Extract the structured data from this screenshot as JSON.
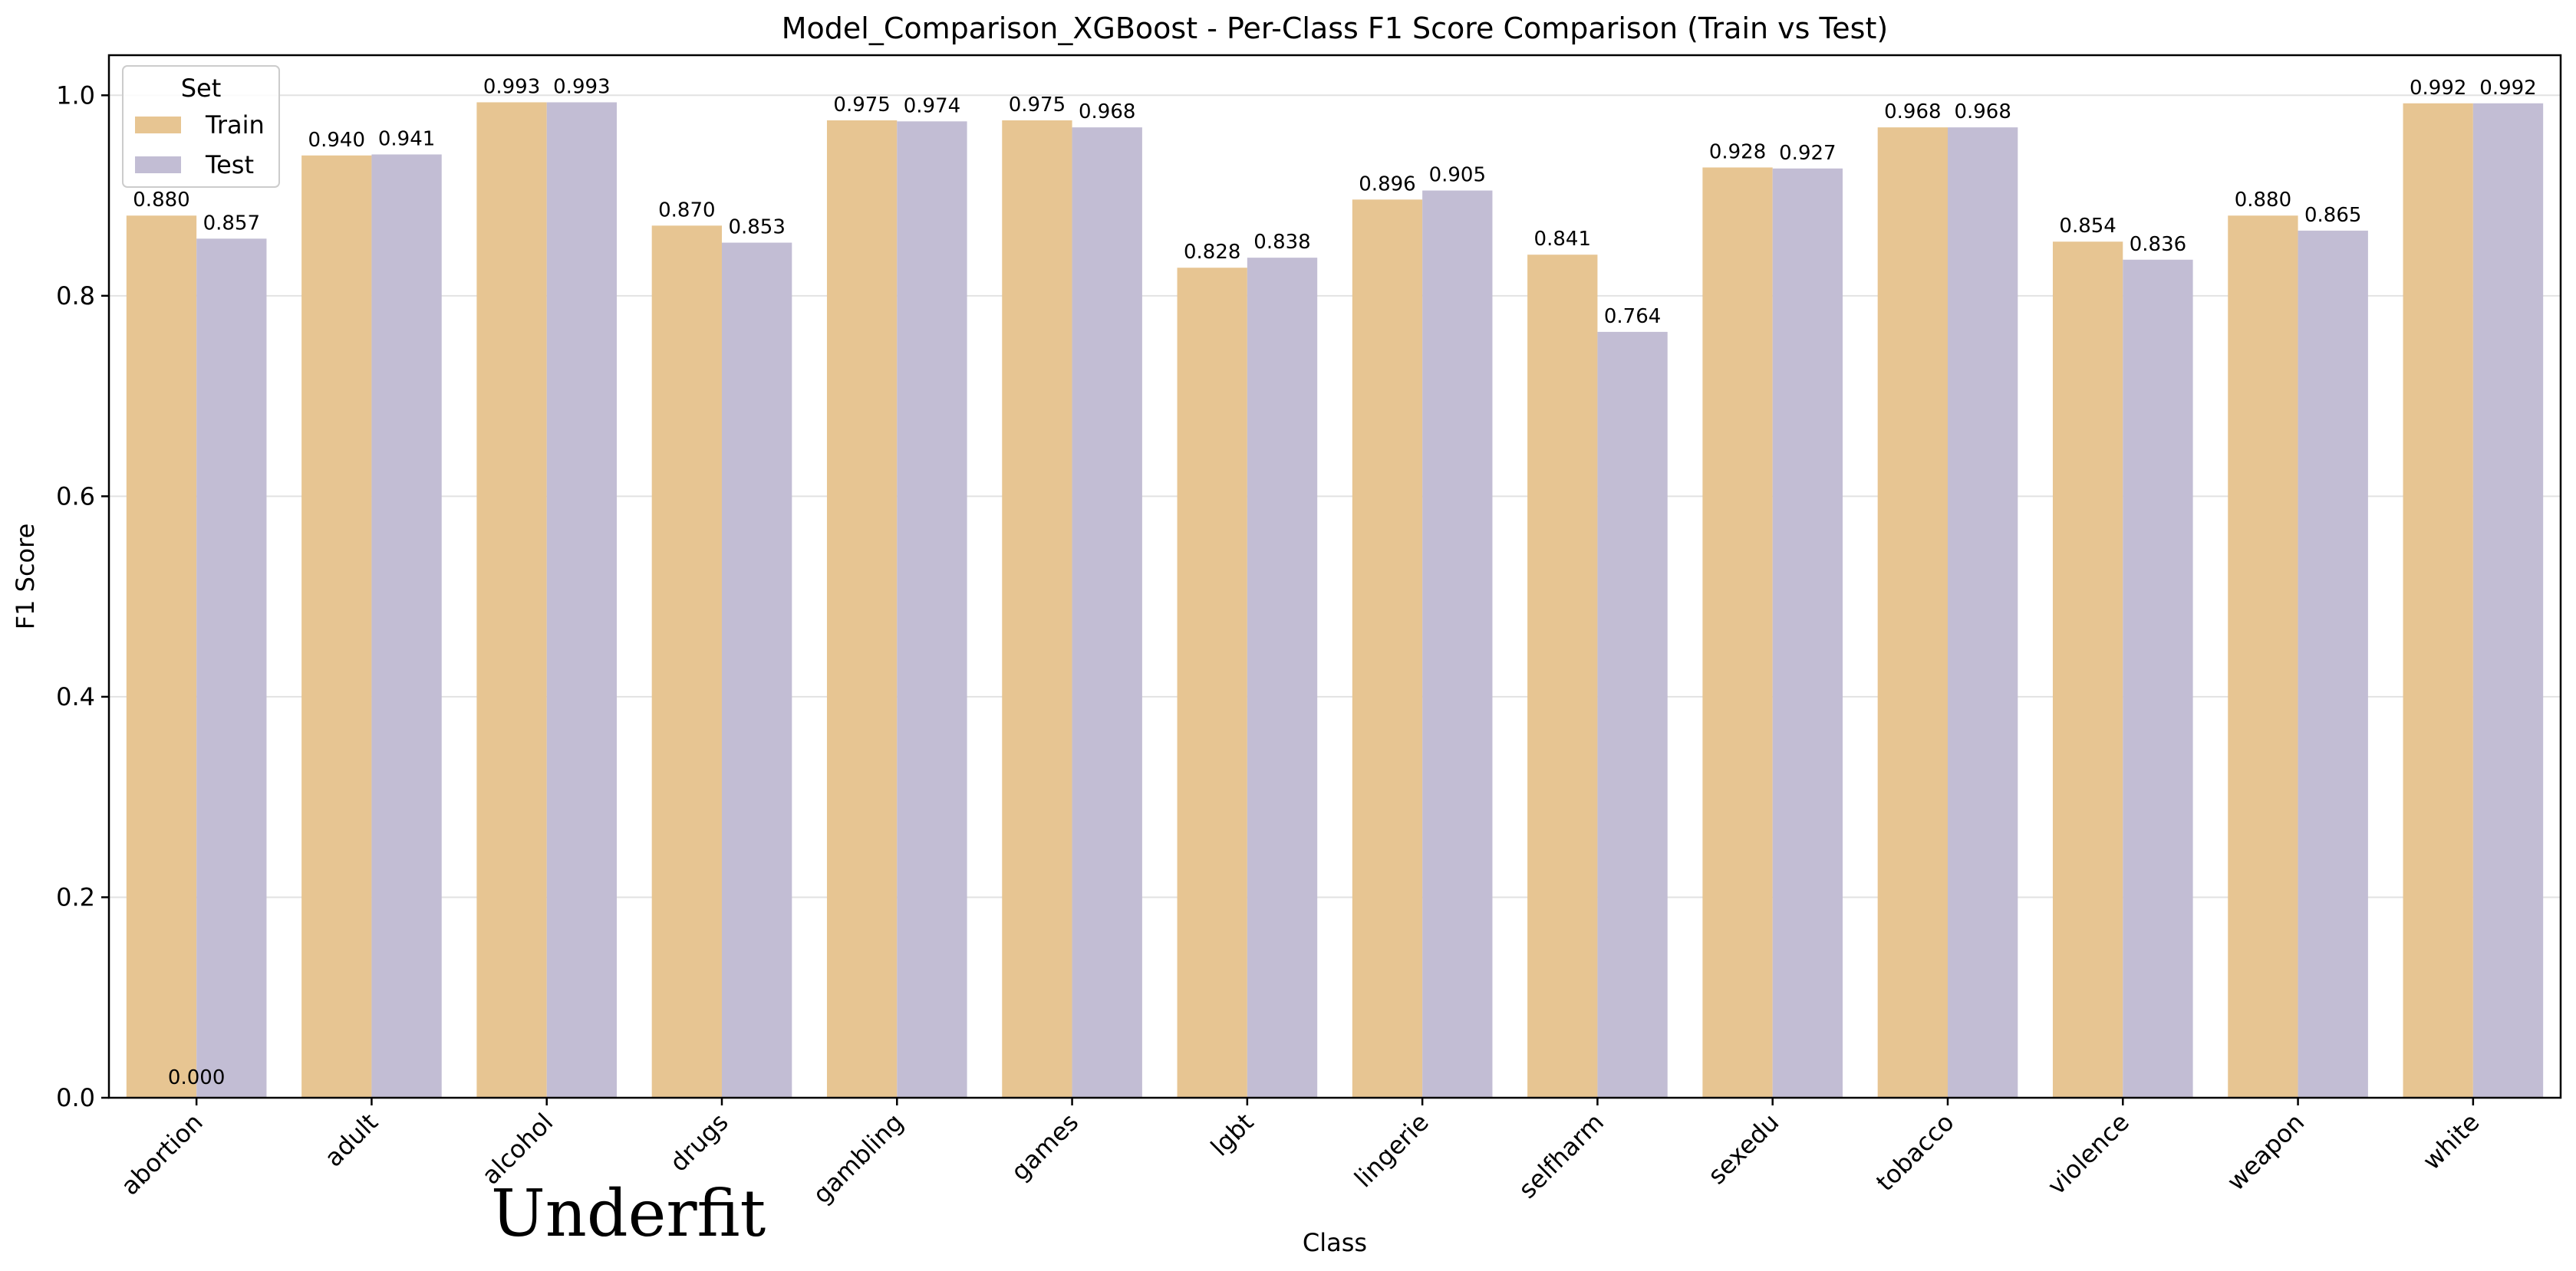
{
  "chart_data": {
    "type": "bar",
    "title": "Model_Comparison_XGBoost - Per-Class F1 Score Comparison (Train vs Test)",
    "xlabel": "Class",
    "ylabel": "F1 Score",
    "ylim": [
      0,
      1.04
    ],
    "yticks": [
      "0.0",
      "0.2",
      "0.4",
      "0.6",
      "0.8",
      "1.0"
    ],
    "grid": "y",
    "legend": {
      "title": "Set",
      "position": "top-left"
    },
    "categories": [
      "abortion",
      "adult",
      "alcohol",
      "drugs",
      "gambling",
      "games",
      "lgbt",
      "lingerie",
      "selfharm",
      "sexedu",
      "tobacco",
      "violence",
      "weapon",
      "white"
    ],
    "series": [
      {
        "name": "Train",
        "color": "#e7c592",
        "values": [
          0.88,
          0.94,
          0.993,
          0.87,
          0.975,
          0.975,
          0.828,
          0.896,
          0.841,
          0.928,
          0.968,
          0.854,
          0.88,
          0.992
        ],
        "labels": [
          "0.880",
          "0.940",
          "0.993",
          "0.870",
          "0.975",
          "0.975",
          "0.828",
          "0.896",
          "0.841",
          "0.928",
          "0.968",
          "0.854",
          "0.880",
          "0.992"
        ]
      },
      {
        "name": "Test",
        "color": "#c2bdd4",
        "values": [
          0.857,
          0.941,
          0.993,
          0.853,
          0.974,
          0.968,
          0.838,
          0.905,
          0.764,
          0.927,
          0.968,
          0.836,
          0.865,
          0.992
        ],
        "labels": [
          "0.857",
          "0.941",
          "0.993",
          "0.853",
          "0.974",
          "0.968",
          "0.838",
          "0.905",
          "0.764",
          "0.927",
          "0.968",
          "0.836",
          "0.865",
          "0.992"
        ]
      }
    ],
    "annotations": [
      {
        "text": "0.000",
        "category": "abortion",
        "value": 0
      }
    ],
    "overlay_text": "Underfit"
  }
}
